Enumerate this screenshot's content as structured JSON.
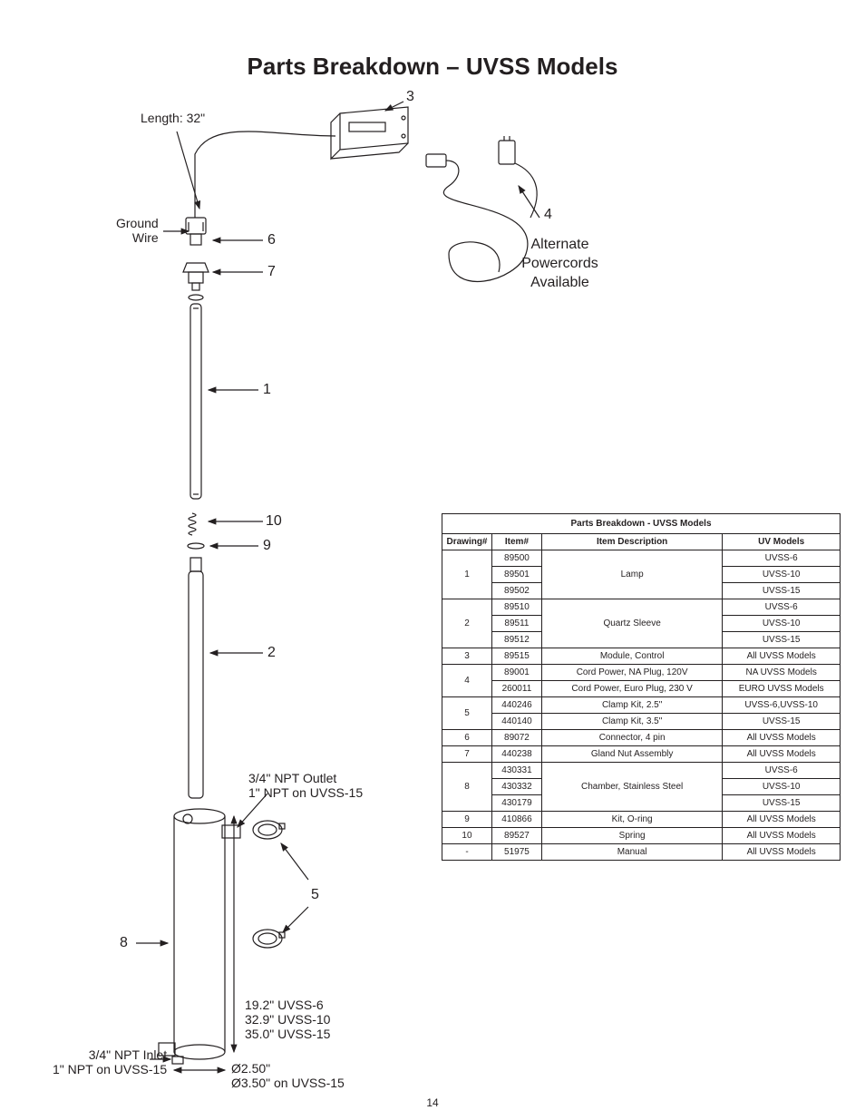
{
  "page": {
    "title": "Parts Breakdown – UVSS Models",
    "number": "14"
  },
  "diagram": {
    "labels": {
      "length": "Length: 32\"",
      "ground_wire": "Ground\nWire",
      "alt_powercords": "Alternate\nPowercords\nAvailable",
      "outlet": "3/4\" NPT Outlet\n1\" NPT on UVSS-15",
      "inlet": "3/4\" NPT Inlet\n1\" NPT on UVSS-15",
      "heights": "19.2\" UVSS-6\n32.9\" UVSS-10\n35.0\" UVSS-15",
      "diameters": "Ø2.50\"\nØ3.50\" on UVSS-15"
    },
    "callouts": {
      "c1": "1",
      "c2": "2",
      "c3": "3",
      "c4": "4",
      "c5": "5",
      "c6": "6",
      "c7": "7",
      "c8": "8",
      "c9": "9",
      "c10": "10"
    }
  },
  "table": {
    "title": "Parts Breakdown - UVSS Models",
    "headers": {
      "drawing": "Drawing#",
      "item": "Item#",
      "desc": "Item Description",
      "model": "UV Models"
    },
    "rows": [
      {
        "drawing": "1",
        "items": [
          "89500",
          "89501",
          "89502"
        ],
        "desc": "Lamp",
        "models": [
          "UVSS-6",
          "UVSS-10",
          "UVSS-15"
        ]
      },
      {
        "drawing": "2",
        "items": [
          "89510",
          "89511",
          "89512"
        ],
        "desc": "Quartz Sleeve",
        "models": [
          "UVSS-6",
          "UVSS-10",
          "UVSS-15"
        ]
      },
      {
        "drawing": "3",
        "items": [
          "89515"
        ],
        "desc": "Module, Control",
        "models": [
          "All UVSS Models"
        ]
      },
      {
        "drawing": "4",
        "items": [
          "89001",
          "260011"
        ],
        "descs": [
          "Cord Power, NA Plug, 120V",
          "Cord Power, Euro Plug, 230 V"
        ],
        "models": [
          "NA UVSS Models",
          "EURO UVSS Models"
        ]
      },
      {
        "drawing": "5",
        "items": [
          "440246",
          "440140"
        ],
        "descs": [
          "Clamp Kit, 2.5\"",
          "Clamp Kit, 3.5\""
        ],
        "models": [
          "UVSS-6,UVSS-10",
          "UVSS-15"
        ]
      },
      {
        "drawing": "6",
        "items": [
          "89072"
        ],
        "desc": "Connector, 4 pin",
        "models": [
          "All UVSS Models"
        ]
      },
      {
        "drawing": "7",
        "items": [
          "440238"
        ],
        "desc": "Gland Nut Assembly",
        "models": [
          "All UVSS Models"
        ]
      },
      {
        "drawing": "8",
        "items": [
          "430331",
          "430332",
          "430179"
        ],
        "desc": "Chamber, Stainless Steel",
        "models": [
          "UVSS-6",
          "UVSS-10",
          "UVSS-15"
        ]
      },
      {
        "drawing": "9",
        "items": [
          "410866"
        ],
        "desc": "Kit, O-ring",
        "models": [
          "All UVSS Models"
        ]
      },
      {
        "drawing": "10",
        "items": [
          "89527"
        ],
        "desc": "Spring",
        "models": [
          "All UVSS Models"
        ]
      },
      {
        "drawing": "-",
        "items": [
          "51975"
        ],
        "desc": "Manual",
        "models": [
          "All UVSS Models"
        ]
      }
    ]
  },
  "style": {
    "stroke": "#231f20",
    "text_color": "#231f20",
    "background": "#ffffff",
    "title_fontsize": 26,
    "table_fontsize": 10,
    "label_fontsize": 14,
    "callout_fontsize": 16
  }
}
